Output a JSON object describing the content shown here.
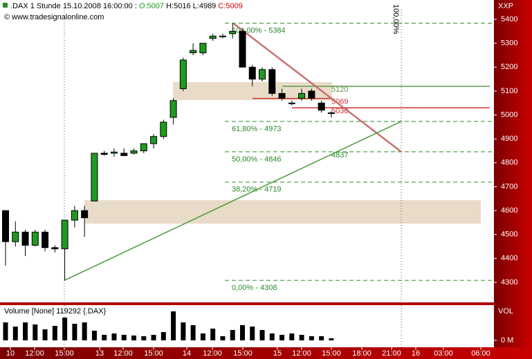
{
  "chart_data": {
    "type": "candlestick",
    "title": ".DAX 1 Stunde",
    "datetime": "15.10.2008 16:00:00 :",
    "ohlc_labels": [
      "O:5007",
      "H:5016",
      "L:4989",
      "C:5009"
    ],
    "copyright": "© www.tradesignalonline.com",
    "axis_label": "XXP",
    "open": [
      4600,
      4470,
      4510,
      4455,
      4510,
      4445,
      4440,
      4560,
      4600,
      4640,
      4840,
      4840,
      4840,
      4840,
      4850,
      4880,
      4910,
      4990,
      5110,
      5260,
      5260,
      5320,
      5330,
      5340,
      5350,
      5200,
      5150,
      5190,
      5090,
      5050,
      5070,
      5100,
      5050,
      5007
    ],
    "high": [
      4600,
      4555,
      4520,
      4520,
      4520,
      4455,
      4560,
      4620,
      4620,
      4840,
      4850,
      4860,
      4860,
      4860,
      4880,
      4920,
      4980,
      5070,
      5240,
      5300,
      5300,
      5340,
      5340,
      5384,
      5360,
      5210,
      5200,
      5200,
      5110,
      5060,
      5110,
      5110,
      5060,
      5016
    ],
    "low": [
      4370,
      4450,
      4410,
      4450,
      4430,
      4425,
      4308,
      4530,
      4490,
      4640,
      4830,
      4825,
      4830,
      4835,
      4840,
      4860,
      4900,
      4960,
      5100,
      5250,
      5250,
      5310,
      5320,
      5320,
      5200,
      5120,
      5140,
      5080,
      5060,
      5040,
      5060,
      5060,
      5010,
      4989
    ],
    "close": [
      4470,
      4510,
      4455,
      4510,
      4445,
      4440,
      4560,
      4600,
      4570,
      4840,
      4835,
      4845,
      4830,
      4850,
      4880,
      4910,
      4970,
      5060,
      5230,
      5270,
      5300,
      5330,
      5330,
      5350,
      5200,
      5150,
      5190,
      5090,
      5070,
      5050,
      5090,
      5070,
      5020,
      5009
    ],
    "up_color": "#1f9a1f",
    "down_color": "#000000",
    "ylim": [
      4216,
      5481
    ],
    "yticks": [
      5400,
      5300,
      5200,
      5100,
      5000,
      4900,
      4800,
      4700,
      4600,
      4500,
      4400,
      4300
    ],
    "x_tick_labels": [
      "10",
      "12:00",
      "15:00",
      "13",
      "12:00",
      "15:00",
      "14",
      "12:00",
      "15:00",
      "15",
      "12:00",
      "15:00",
      "18:00",
      "21:00",
      "16",
      "03:00",
      "06:00"
    ],
    "fib_color": "#2a8a2a",
    "fib_levels": [
      {
        "value": 5384,
        "label": "100,00% - 5384"
      },
      {
        "value": 4973,
        "label": "61,80% - 4973"
      },
      {
        "value": 4846,
        "label": "50,00% - 4846"
      },
      {
        "value": 4719,
        "label": "38,20% - 4719"
      },
      {
        "value": 4308,
        "label": "0,00% - 4308"
      }
    ],
    "price_lines": [
      {
        "value": 5069,
        "color": "#d03030"
      },
      {
        "value": 5030,
        "color": "#d03030"
      },
      {
        "value": 5120,
        "color": "#5a9a4a"
      }
    ],
    "trend_label": 4837,
    "vertical_label": "100,00%",
    "trendlines": [
      {
        "color": "#c87070",
        "values": [
          5384,
          4846
        ]
      },
      {
        "color": "#4a9a3a",
        "values": [
          4308,
          4973
        ]
      }
    ],
    "volume": {
      "type": "bar",
      "title": "Volume [None] 119292 {.DAX}",
      "axis_label": "VOL",
      "color": "#000000",
      "values": [
        1040000,
        800000,
        1040000,
        920000,
        640000,
        840000,
        1320000,
        960000,
        1040000,
        560000,
        320000,
        400000,
        320000,
        280000,
        240000,
        320000,
        480000,
        1680000,
        1040000,
        880000,
        400000,
        680000,
        240000,
        600000,
        880000,
        800000,
        600000,
        400000,
        320000,
        400000,
        320000,
        240000,
        240000,
        119292
      ],
      "ylim": [
        -400000,
        2040000
      ],
      "yticks": [
        {
          "value": 0,
          "label": "0 M"
        }
      ]
    }
  }
}
